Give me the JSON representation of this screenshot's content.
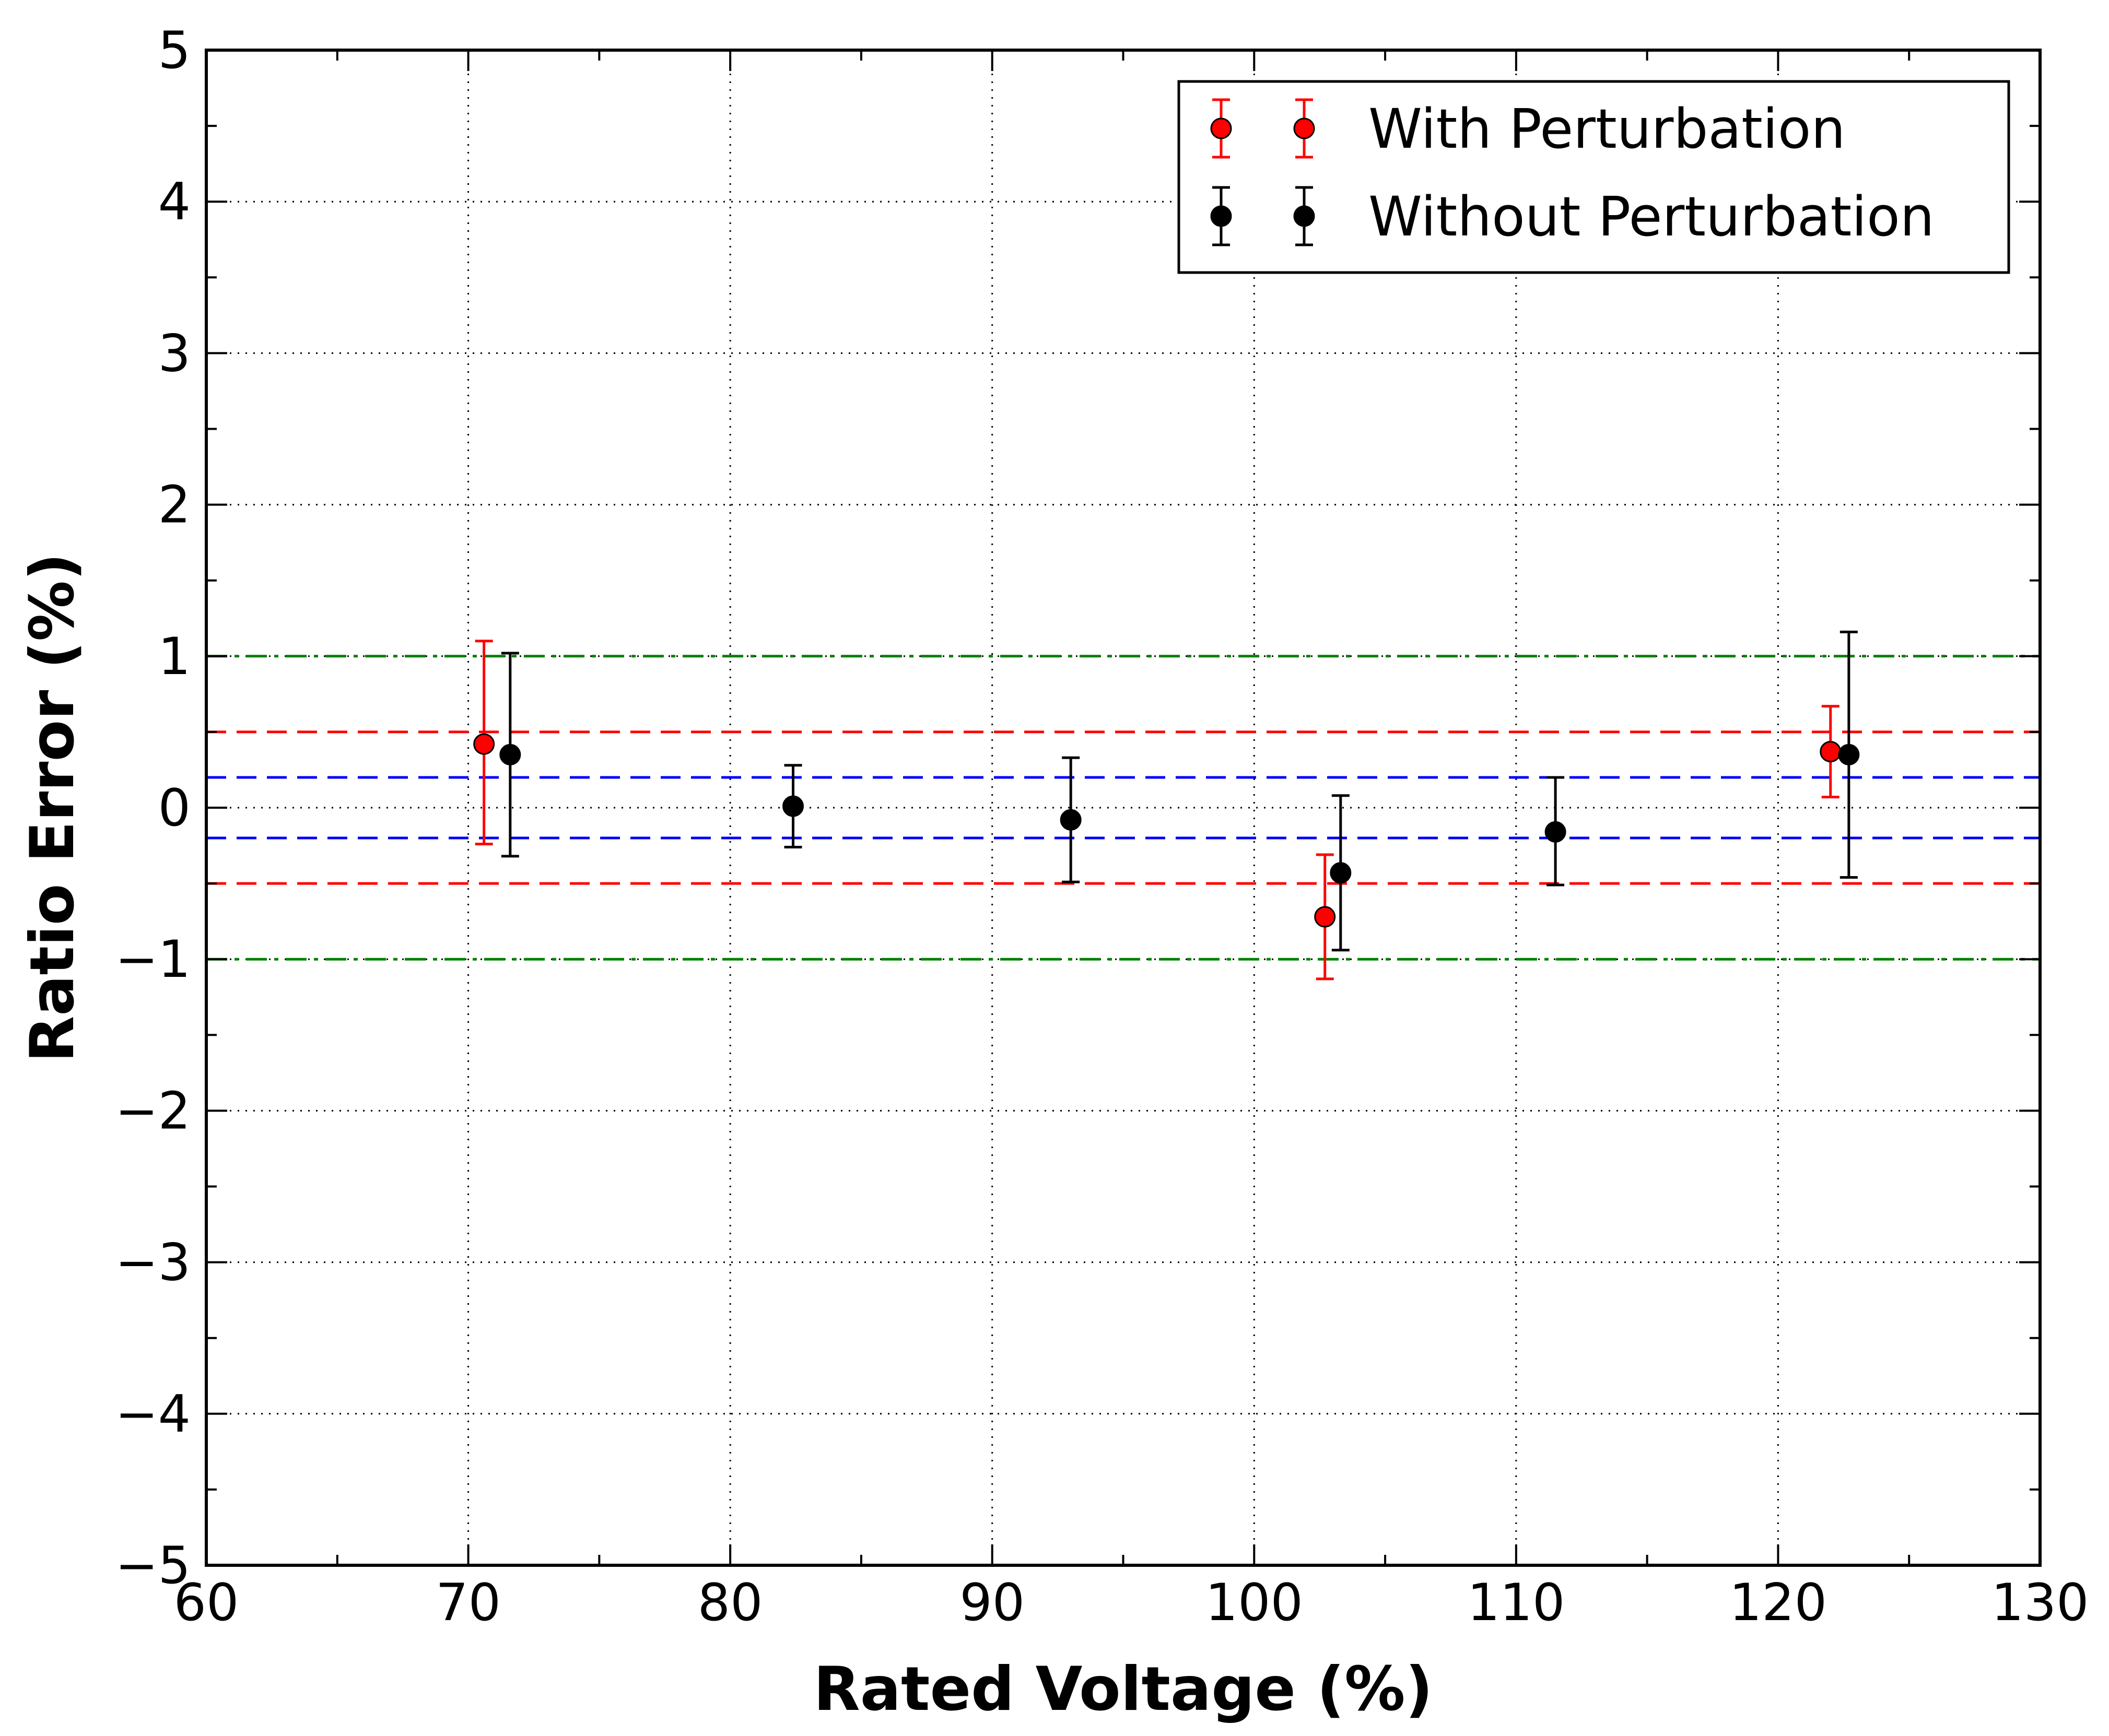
{
  "chart_data": {
    "type": "scatter",
    "title": "",
    "xlabel": "Rated Voltage (%)",
    "ylabel": "Ratio Error (%)",
    "xlim": [
      60,
      130
    ],
    "ylim": [
      -5,
      5
    ],
    "x_ticks": [
      60,
      70,
      80,
      90,
      100,
      110,
      120,
      130
    ],
    "y_ticks": [
      -5,
      -4,
      -3,
      -2,
      -1,
      0,
      1,
      2,
      3,
      4,
      5
    ],
    "x_tick_labels": [
      "60",
      "70",
      "80",
      "90",
      "100",
      "110",
      "120",
      "130"
    ],
    "y_tick_labels": [
      "−5",
      "−4",
      "−3",
      "−2",
      "−1",
      "0",
      "1",
      "2",
      "3",
      "4",
      "5"
    ],
    "grid": true,
    "legend_position": "top-right",
    "series": [
      {
        "name": "With Perturbation",
        "color": "#ff0000",
        "points": [
          {
            "x": 70.6,
            "y": 0.42,
            "err_low": -0.24,
            "err_high": 1.1
          },
          {
            "x": 102.7,
            "y": -0.72,
            "err_low": -1.13,
            "err_high": -0.31
          },
          {
            "x": 122.0,
            "y": 0.37,
            "err_low": 0.07,
            "err_high": 0.67
          }
        ]
      },
      {
        "name": "Without Perturbation",
        "color": "#000000",
        "points": [
          {
            "x": 71.6,
            "y": 0.35,
            "err_low": -0.32,
            "err_high": 1.02
          },
          {
            "x": 82.4,
            "y": 0.01,
            "err_low": -0.26,
            "err_high": 0.28
          },
          {
            "x": 93.0,
            "y": -0.08,
            "err_low": -0.49,
            "err_high": 0.33
          },
          {
            "x": 103.3,
            "y": -0.43,
            "err_low": -0.94,
            "err_high": 0.08
          },
          {
            "x": 111.5,
            "y": -0.16,
            "err_low": -0.51,
            "err_high": 0.2
          },
          {
            "x": 122.7,
            "y": 0.35,
            "err_low": -0.46,
            "err_high": 1.16
          }
        ]
      }
    ],
    "reference_lines": [
      {
        "name": "green-limit-upper",
        "y": 1.0,
        "color": "#008000",
        "style": "dashdot"
      },
      {
        "name": "green-limit-lower",
        "y": -1.0,
        "color": "#008000",
        "style": "dashdot"
      },
      {
        "name": "red-limit-upper",
        "y": 0.5,
        "color": "#ff0000",
        "style": "dashed"
      },
      {
        "name": "red-limit-lower",
        "y": -0.5,
        "color": "#ff0000",
        "style": "dashed"
      },
      {
        "name": "blue-limit-upper",
        "y": 0.2,
        "color": "#0000ff",
        "style": "dashed"
      },
      {
        "name": "blue-limit-lower",
        "y": -0.2,
        "color": "#0000ff",
        "style": "dashed"
      }
    ]
  }
}
